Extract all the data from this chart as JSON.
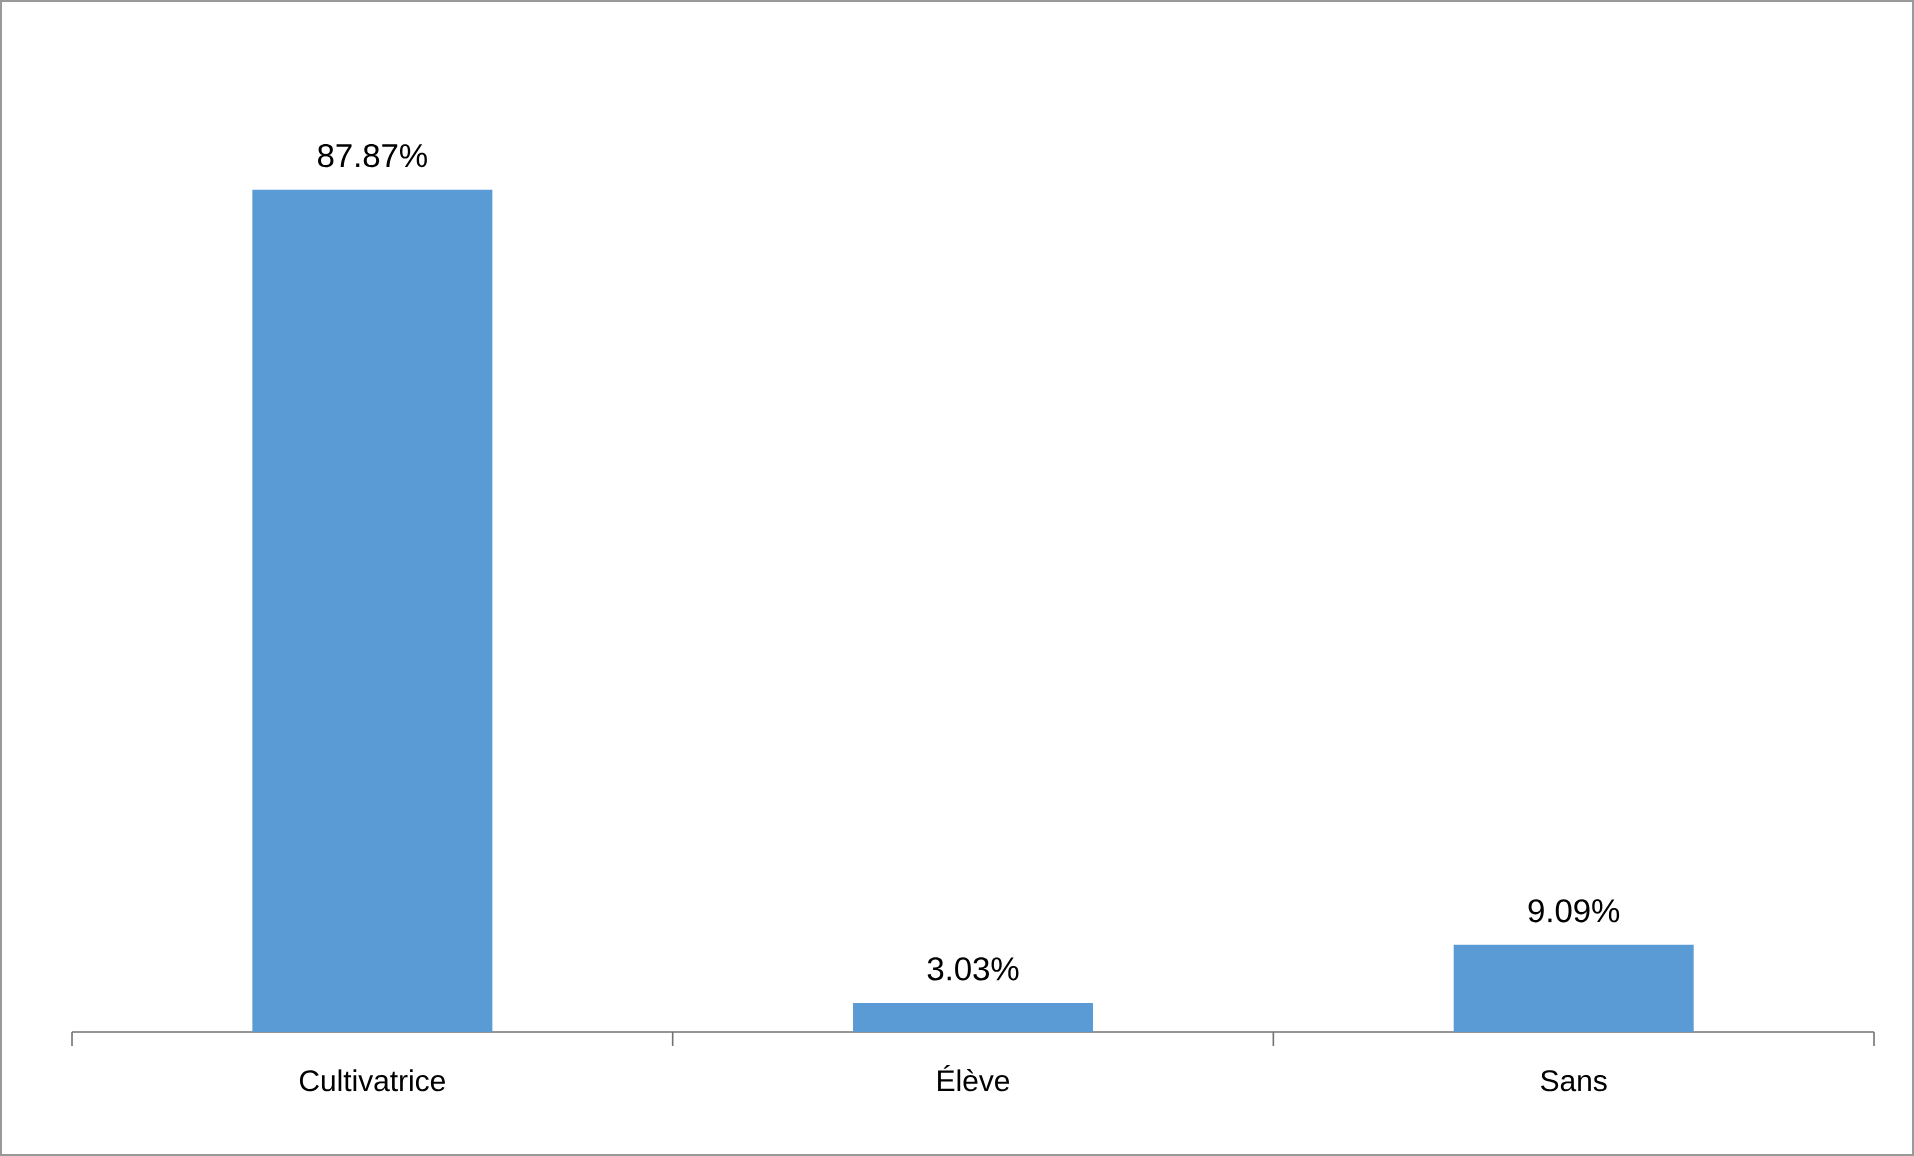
{
  "chart_data": {
    "type": "bar",
    "categories": [
      "Cultivatrice",
      "Élève",
      "Sans"
    ],
    "values": [
      87.87,
      3.03,
      9.09
    ],
    "color": "#5b9bd5",
    "value_labels": [
      "87.87%",
      "3.03%",
      "9.09%"
    ]
  }
}
